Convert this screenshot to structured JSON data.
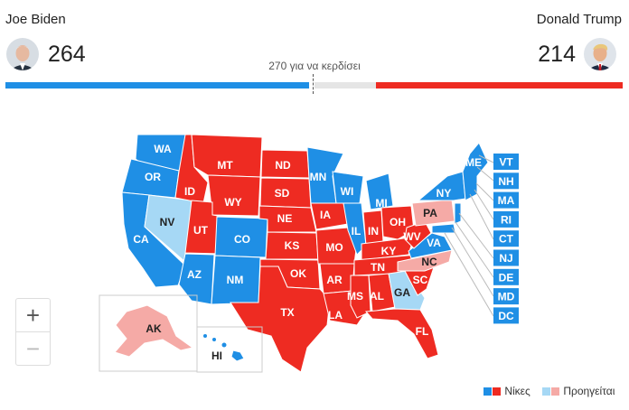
{
  "candidates": {
    "left": {
      "name": "Joe Biden",
      "votes": "264",
      "color": "#1f8fe5"
    },
    "right": {
      "name": "Donald Trump",
      "votes": "214",
      "color": "#ee2b22"
    }
  },
  "threshold_label": "270 για να κερδίσει",
  "colors": {
    "dem_win": "#1f8fe5",
    "rep_win": "#ee2b22",
    "dem_lead": "#a6d8f5",
    "rep_lead": "#f5aaa6"
  },
  "states": {
    "WA": "WA",
    "OR": "OR",
    "CA": "CA",
    "NV": "NV",
    "ID": "ID",
    "MT": "MT",
    "WY": "WY",
    "UT": "UT",
    "AZ": "AZ",
    "CO": "CO",
    "NM": "NM",
    "ND": "ND",
    "SD": "SD",
    "NE": "NE",
    "KS": "KS",
    "OK": "OK",
    "TX": "TX",
    "MN": "MN",
    "IA": "IA",
    "MO": "MO",
    "AR": "AR",
    "LA": "LA",
    "WI": "WI",
    "IL": "IL",
    "MI": "MI",
    "IN": "IN",
    "OH": "OH",
    "KY": "KY",
    "TN": "TN",
    "MS": "MS",
    "AL": "AL",
    "GA": "GA",
    "FL": "FL",
    "SC": "SC",
    "NC": "NC",
    "VA": "VA",
    "WV": "WV",
    "PA": "PA",
    "NY": "NY",
    "ME": "ME",
    "AK": "AK",
    "HI": "HI"
  },
  "small_states": [
    "VT",
    "NH",
    "MA",
    "RI",
    "CT",
    "NJ",
    "DE",
    "MD",
    "DC"
  ],
  "zoom": {
    "in": "+",
    "out": "−"
  },
  "legend": {
    "win": "Νίκες",
    "lead": "Προηγείται"
  }
}
